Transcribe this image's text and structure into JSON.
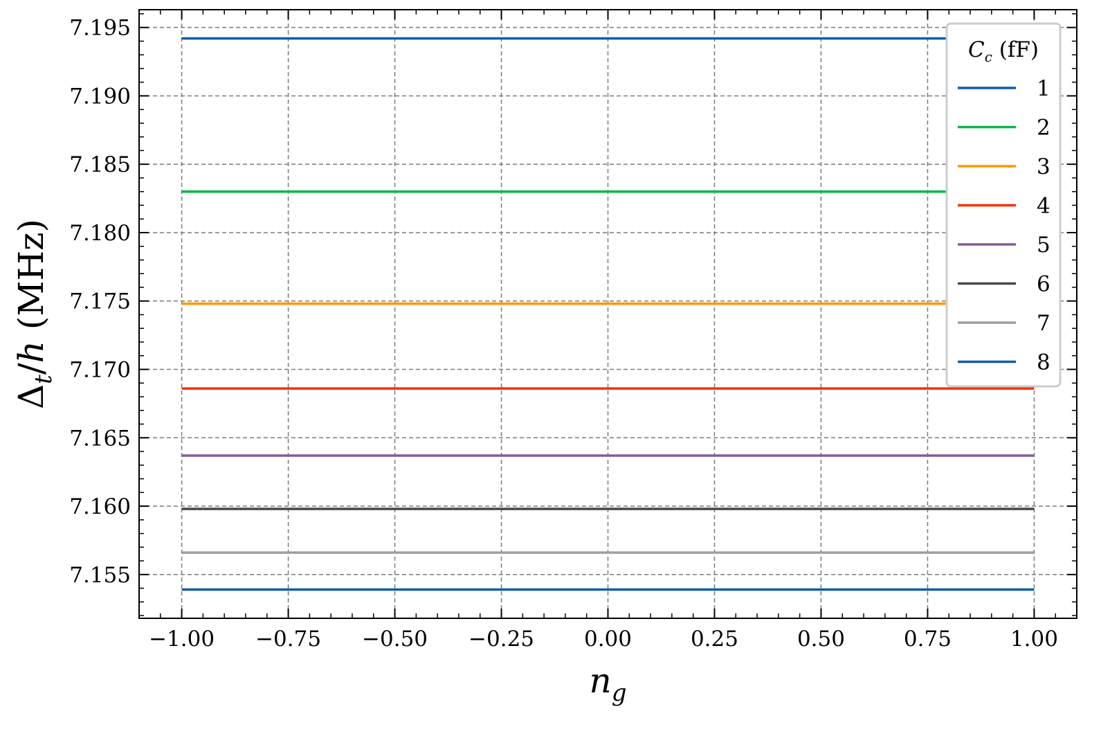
{
  "chart_data": {
    "type": "line",
    "xlabel": "n_g",
    "ylabel": "Δ_t/h (MHz)",
    "xlim": [
      -1.1,
      1.1
    ],
    "ylim": [
      7.1518,
      7.1963
    ],
    "x_ticks": [
      -1.0,
      -0.75,
      -0.5,
      -0.25,
      0.0,
      0.25,
      0.5,
      0.75,
      1.0
    ],
    "x_tick_labels": [
      "−1.00",
      "−0.75",
      "−0.50",
      "−0.25",
      "0.00",
      "0.25",
      "0.50",
      "0.75",
      "1.00"
    ],
    "y_ticks": [
      7.155,
      7.16,
      7.165,
      7.17,
      7.175,
      7.18,
      7.185,
      7.19,
      7.195
    ],
    "y_tick_labels": [
      "7.155",
      "7.160",
      "7.165",
      "7.170",
      "7.175",
      "7.180",
      "7.185",
      "7.190",
      "7.195"
    ],
    "grid": true,
    "legend": {
      "title": "C_c (fF)",
      "placement": "top-right"
    },
    "x": [
      -1.0,
      1.0
    ],
    "series": [
      {
        "name": "1",
        "color": "#0c5da5",
        "values": [
          7.1942,
          7.1942
        ]
      },
      {
        "name": "2",
        "color": "#00b945",
        "values": [
          7.183,
          7.183
        ]
      },
      {
        "name": "3",
        "color": "#ff9500",
        "values": [
          7.1748,
          7.1748
        ]
      },
      {
        "name": "4",
        "color": "#ff2c00",
        "values": [
          7.1686,
          7.1686
        ]
      },
      {
        "name": "5",
        "color": "#845b97",
        "values": [
          7.1637,
          7.1637
        ]
      },
      {
        "name": "6",
        "color": "#474747",
        "values": [
          7.1598,
          7.1598
        ]
      },
      {
        "name": "7",
        "color": "#9e9e9e",
        "values": [
          7.1566,
          7.1566
        ]
      },
      {
        "name": "8",
        "color": "#0c5da5",
        "values": [
          7.1539,
          7.1539
        ]
      }
    ]
  }
}
